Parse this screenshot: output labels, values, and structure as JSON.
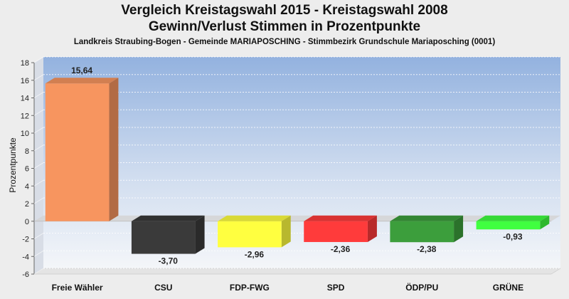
{
  "header": {
    "title_line1": "Vergleich Kreistagswahl 2015 - Kreistagswahl 2008",
    "title_line2": "Gewinn/Verlust Stimmen in Prozentpunkte",
    "subtitle": "Landkreis Straubing-Bogen - Gemeinde MARIAPOSCHING - Stimmbezirk Grundschule Mariaposching (0001)"
  },
  "chart_data": {
    "type": "bar",
    "title": "Vergleich Kreistagswahl 2015 - Kreistagswahl 2008 / Gewinn/Verlust Stimmen in Prozentpunkte",
    "xlabel": "",
    "ylabel": "Prozentpunkte",
    "ylim": [
      -6,
      18
    ],
    "yticks": [
      -6,
      -4,
      -2,
      0,
      2,
      4,
      6,
      8,
      10,
      12,
      14,
      16,
      18
    ],
    "grid": true,
    "categories": [
      "Freie Wähler",
      "CSU",
      "FDP-FWG",
      "SPD",
      "ÖDP/PU",
      "GRÜNE"
    ],
    "values": [
      15.64,
      -3.7,
      -2.96,
      -2.36,
      -2.38,
      -0.93
    ],
    "data_labels": [
      "15,64",
      "-3,70",
      "-2,96",
      "-2,36",
      "-2,38",
      "-0,93"
    ],
    "colors": [
      "#f7955f",
      "#3a3a3a",
      "#ffff40",
      "#ff3b3b",
      "#3c9e3c",
      "#40ff40"
    ]
  }
}
